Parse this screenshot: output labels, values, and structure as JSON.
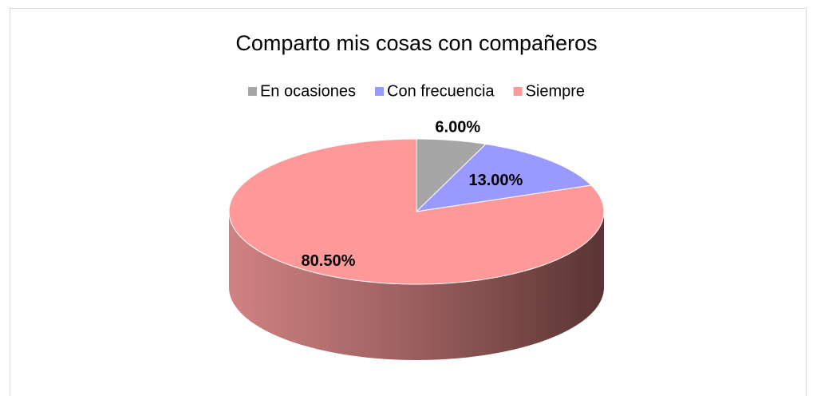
{
  "chart_data": {
    "type": "pie",
    "title": "Comparto mis cosas con compañeros",
    "categories": [
      "En ocasiones",
      "Con frecuencia",
      "Siempre"
    ],
    "values": [
      6,
      13,
      80.5
    ],
    "value_labels": [
      "6.00%",
      "13.00%",
      "80.50%"
    ],
    "colors": [
      "#a6a6a6",
      "#9999ff",
      "#ff9999"
    ],
    "legend": "top"
  }
}
